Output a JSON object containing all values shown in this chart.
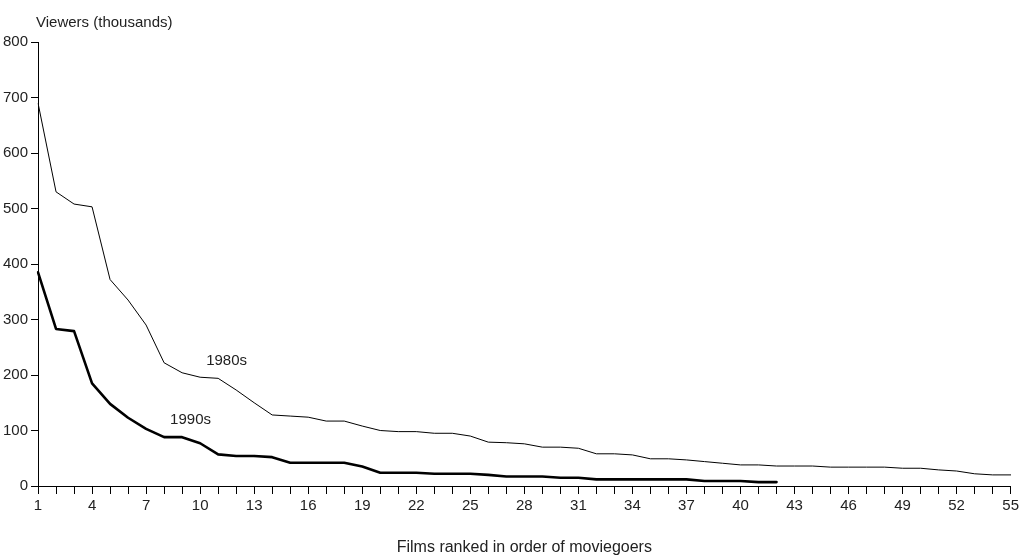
{
  "chart_data": {
    "type": "line",
    "xlabel": "Films ranked in order of moviegoers",
    "ylabel": "Viewers (thousands)",
    "categories": [
      "1",
      null,
      null,
      "4",
      null,
      null,
      "7",
      null,
      null,
      "10",
      null,
      null,
      "13",
      null,
      null,
      "16",
      null,
      null,
      "19",
      null,
      null,
      "22",
      null,
      null,
      "25",
      null,
      null,
      "28",
      null,
      null,
      "31",
      null,
      null,
      "34",
      null,
      null,
      "37",
      null,
      null,
      "40",
      null,
      null,
      "43",
      null,
      null,
      "46",
      null,
      null,
      "49",
      null,
      null,
      "52",
      null,
      null,
      "55"
    ],
    "series": [
      {
        "name": "1980s",
        "color": "#000000",
        "values": [
          690,
          530,
          508,
          503,
          372,
          335,
          290,
          222,
          204,
          196,
          194,
          173,
          150,
          128,
          126,
          124,
          117,
          117,
          108,
          100,
          98,
          98,
          95,
          95,
          90,
          79,
          78,
          76,
          70,
          70,
          68,
          58,
          58,
          56,
          49,
          49,
          47,
          44,
          41,
          38,
          38,
          36,
          36,
          36,
          34,
          34,
          34,
          34,
          32,
          32,
          29,
          27,
          22,
          20,
          20
        ]
      },
      {
        "name": "1990s",
        "color": "#000000",
        "values": [
          385,
          283,
          279,
          185,
          148,
          123,
          103,
          88,
          88,
          77,
          57,
          54,
          54,
          52,
          42,
          42,
          42,
          42,
          35,
          24,
          24,
          24,
          22,
          22,
          22,
          20,
          17,
          17,
          17,
          15,
          15,
          12,
          12,
          12,
          12,
          12,
          12,
          9,
          9,
          9,
          7,
          7,
          null,
          null,
          null,
          null,
          null,
          null,
          null,
          null,
          null,
          null,
          null,
          null,
          null
        ]
      }
    ],
    "ylim": [
      0,
      800
    ],
    "yticks": [
      0,
      100,
      200,
      300,
      400,
      500,
      600,
      700,
      800
    ],
    "grid": false,
    "legend": false,
    "marker": "none",
    "line_style": "solid"
  }
}
